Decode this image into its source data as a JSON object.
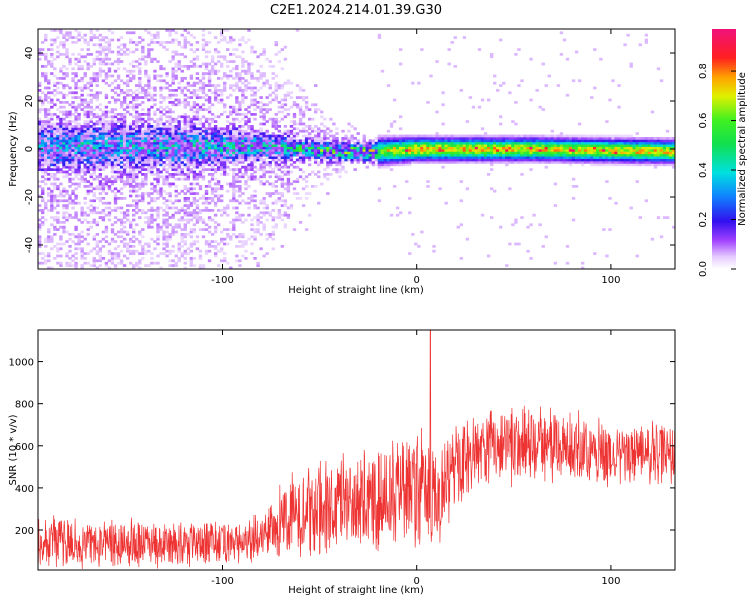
{
  "chart_data": [
    {
      "type": "heatmap",
      "title": "C2E1.2024.214.01.39.G30",
      "xlabel": "Height of straight line (km)",
      "ylabel": "Frequency (Hz)",
      "xlim": [
        -195,
        133
      ],
      "ylim": [
        -50,
        50
      ],
      "xticks": [
        -100,
        0,
        100
      ],
      "yticks": [
        -40,
        -20,
        0,
        20,
        40
      ],
      "colorbar": {
        "label": "Normalized spectral amplitude",
        "range": [
          0,
          0.97
        ],
        "ticks": [
          0.0,
          0.2,
          0.4,
          0.6,
          0.8
        ],
        "colormap": "white-purple-blue-cyan-green-yellow-red-magenta"
      },
      "profile": {
        "description_values": [
          {
            "x": -195,
            "center_hz": 1,
            "spread_hz": 45,
            "amplitude": 0.3
          },
          {
            "x": -120,
            "center_hz": 1,
            "spread_hz": 40,
            "amplitude": 0.35
          },
          {
            "x": -75,
            "center_hz": 1,
            "spread_hz": 25,
            "amplitude": 0.4
          },
          {
            "x": -40,
            "center_hz": -1,
            "spread_hz": 6,
            "amplitude": 0.55
          },
          {
            "x": -20,
            "center_hz": -1,
            "spread_hz": 3,
            "amplitude": 0.6
          },
          {
            "x": 0,
            "center_hz": 0,
            "spread_hz": 2.5,
            "amplitude": 0.8
          },
          {
            "x": 60,
            "center_hz": 0,
            "spread_hz": 2.5,
            "amplitude": 0.75
          },
          {
            "x": 133,
            "center_hz": -1,
            "spread_hz": 2.5,
            "amplitude": 0.75
          }
        ]
      },
      "grid": false
    },
    {
      "type": "line",
      "xlabel": "Height of straight line (km)",
      "ylabel": "SNR (10 * v/v)",
      "xlim": [
        -195,
        133
      ],
      "ylim": [
        10,
        1150
      ],
      "xticks": [
        -100,
        0,
        100
      ],
      "yticks": [
        200,
        400,
        600,
        800,
        1000
      ],
      "line_color": "#ee3333",
      "envelope": [
        {
          "x": -195,
          "mean": 150,
          "spread": 110
        },
        {
          "x": -160,
          "mean": 140,
          "spread": 100
        },
        {
          "x": -120,
          "mean": 130,
          "spread": 90
        },
        {
          "x": -90,
          "mean": 140,
          "spread": 90
        },
        {
          "x": -78,
          "mean": 170,
          "spread": 100
        },
        {
          "x": -70,
          "mean": 260,
          "spread": 160
        },
        {
          "x": -50,
          "mean": 300,
          "spread": 190
        },
        {
          "x": -30,
          "mean": 330,
          "spread": 220
        },
        {
          "x": -10,
          "mean": 370,
          "spread": 230
        },
        {
          "x": 5,
          "mean": 420,
          "spread": 250
        },
        {
          "x": 10,
          "mean": 350,
          "spread": 250
        },
        {
          "x": 20,
          "mean": 520,
          "spread": 180
        },
        {
          "x": 40,
          "mean": 600,
          "spread": 150
        },
        {
          "x": 70,
          "mean": 610,
          "spread": 150
        },
        {
          "x": 100,
          "mean": 560,
          "spread": 130
        },
        {
          "x": 133,
          "mean": 570,
          "spread": 130
        }
      ],
      "peak": {
        "x": 7,
        "y": 1150
      },
      "grid": false
    }
  ]
}
